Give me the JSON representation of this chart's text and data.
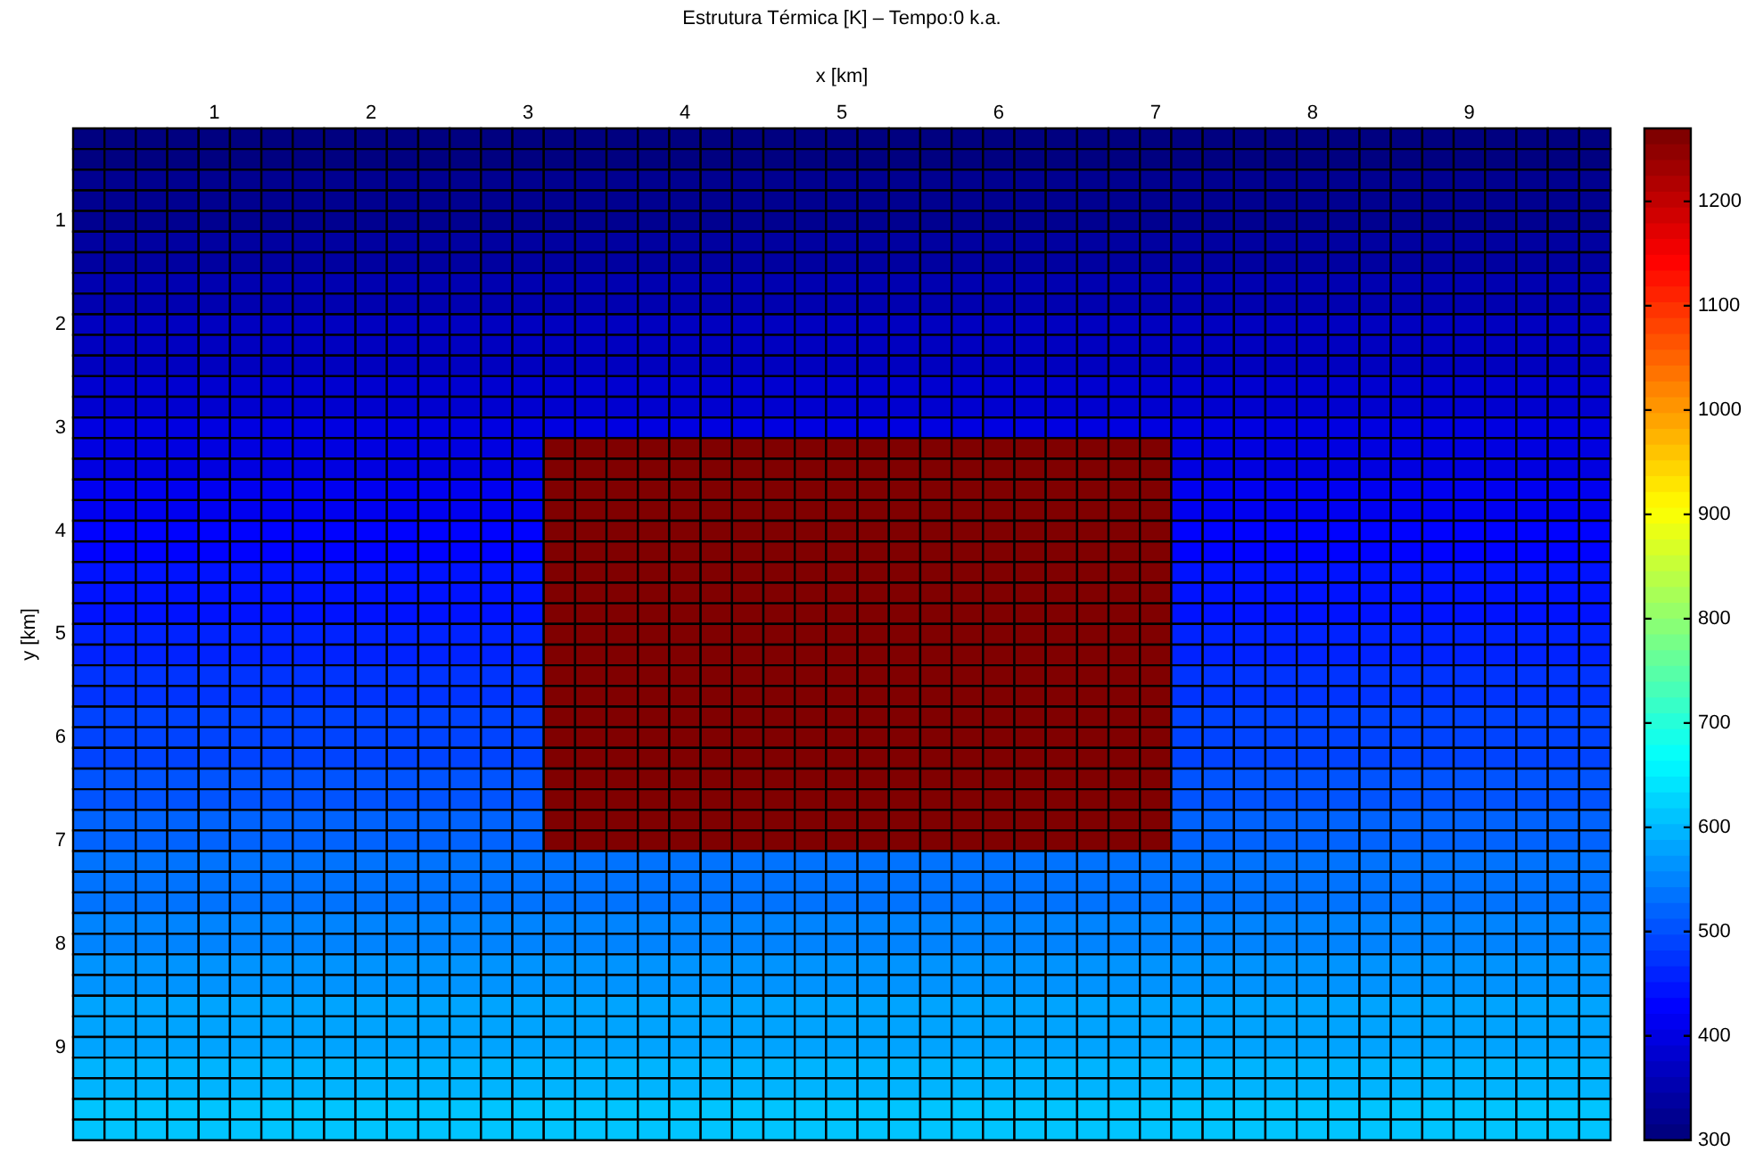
{
  "chart_data": {
    "type": "heatmap",
    "title": "Estrutura Térmica [K] – Tempo:0 k.a.",
    "xlabel": "x [km]",
    "ylabel": "y [km]",
    "categories": [
      null,
      null,
      null,
      null,
      "1",
      null,
      null,
      null,
      null,
      "2",
      null,
      null,
      null,
      null,
      "3",
      null,
      null,
      null,
      null,
      "4",
      null,
      null,
      null,
      null,
      "5",
      null,
      null,
      null,
      null,
      "6",
      null,
      null,
      null,
      null,
      "7",
      null,
      null,
      null,
      null,
      "8",
      null,
      null,
      null,
      null,
      "9",
      null,
      null,
      null,
      null
    ],
    "y_categories": [
      null,
      null,
      null,
      null,
      "1",
      null,
      null,
      null,
      null,
      "2",
      null,
      null,
      null,
      null,
      "3",
      null,
      null,
      null,
      null,
      "4",
      null,
      null,
      null,
      null,
      "5",
      null,
      null,
      null,
      null,
      "6",
      null,
      null,
      null,
      null,
      "7",
      null,
      null,
      null,
      null,
      "8",
      null,
      null,
      null,
      null,
      "9",
      null,
      null,
      null,
      null
    ],
    "clim": [
      300,
      1270
    ],
    "cticks": [
      300,
      400,
      500,
      600,
      700,
      800,
      900,
      1000,
      1100,
      1200
    ],
    "cells": [
      [
        305,
        305,
        305,
        305,
        305,
        305,
        305,
        305,
        305,
        305,
        305,
        305,
        305,
        305,
        305,
        305,
        305,
        305,
        305,
        305,
        305,
        305,
        305,
        305,
        305,
        305,
        305,
        305,
        305,
        305,
        305,
        305,
        305,
        305,
        305,
        305,
        305,
        305,
        305,
        305,
        305,
        305,
        305,
        305,
        305,
        305,
        305,
        305,
        305
      ],
      [
        310,
        310,
        310,
        310,
        310,
        310,
        310,
        310,
        310,
        310,
        310,
        310,
        310,
        310,
        310,
        310,
        310,
        310,
        310,
        310,
        310,
        310,
        310,
        310,
        310,
        310,
        310,
        310,
        310,
        310,
        310,
        310,
        310,
        310,
        310,
        310,
        310,
        310,
        310,
        310,
        310,
        310,
        310,
        310,
        310,
        310,
        310,
        310,
        310
      ],
      [
        320,
        320,
        320,
        320,
        320,
        320,
        320,
        320,
        320,
        320,
        320,
        320,
        320,
        320,
        320,
        320,
        320,
        320,
        320,
        320,
        320,
        320,
        320,
        320,
        320,
        320,
        320,
        320,
        320,
        320,
        320,
        320,
        320,
        320,
        320,
        320,
        320,
        320,
        320,
        320,
        320,
        320,
        320,
        320,
        320,
        320,
        320,
        320,
        320
      ],
      [
        325,
        325,
        325,
        325,
        325,
        325,
        325,
        325,
        325,
        325,
        325,
        325,
        325,
        325,
        325,
        325,
        325,
        325,
        325,
        325,
        325,
        325,
        325,
        325,
        325,
        325,
        325,
        325,
        325,
        325,
        325,
        325,
        325,
        325,
        325,
        325,
        325,
        325,
        325,
        325,
        325,
        325,
        325,
        325,
        325,
        325,
        325,
        325,
        325
      ],
      [
        330,
        330,
        330,
        330,
        330,
        330,
        330,
        330,
        330,
        330,
        330,
        330,
        330,
        330,
        330,
        330,
        330,
        330,
        330,
        330,
        330,
        330,
        330,
        330,
        330,
        330,
        330,
        330,
        330,
        330,
        330,
        330,
        330,
        330,
        330,
        330,
        330,
        330,
        330,
        330,
        330,
        330,
        330,
        330,
        330,
        330,
        330,
        330,
        330
      ],
      [
        335,
        335,
        335,
        335,
        335,
        335,
        335,
        335,
        335,
        335,
        335,
        335,
        335,
        335,
        335,
        335,
        335,
        335,
        335,
        335,
        335,
        335,
        335,
        335,
        335,
        335,
        335,
        335,
        335,
        335,
        335,
        335,
        335,
        335,
        335,
        335,
        335,
        335,
        335,
        335,
        335,
        335,
        335,
        335,
        335,
        335,
        335,
        335,
        335
      ],
      [
        345,
        345,
        345,
        345,
        345,
        345,
        345,
        345,
        345,
        345,
        345,
        345,
        345,
        345,
        345,
        345,
        345,
        345,
        345,
        345,
        345,
        345,
        345,
        345,
        345,
        345,
        345,
        345,
        345,
        345,
        345,
        345,
        345,
        345,
        345,
        345,
        345,
        345,
        345,
        345,
        345,
        345,
        345,
        345,
        345,
        345,
        345,
        345,
        345
      ],
      [
        350,
        350,
        350,
        350,
        350,
        350,
        350,
        350,
        350,
        350,
        350,
        350,
        350,
        350,
        350,
        350,
        350,
        350,
        350,
        350,
        350,
        350,
        350,
        350,
        350,
        350,
        350,
        350,
        350,
        350,
        350,
        350,
        350,
        350,
        350,
        350,
        350,
        350,
        350,
        350,
        350,
        350,
        350,
        350,
        350,
        350,
        350,
        350,
        350
      ],
      [
        355,
        355,
        355,
        355,
        355,
        355,
        355,
        355,
        355,
        355,
        355,
        355,
        355,
        355,
        355,
        355,
        355,
        355,
        355,
        355,
        355,
        355,
        355,
        355,
        355,
        355,
        355,
        355,
        355,
        355,
        355,
        355,
        355,
        355,
        355,
        355,
        355,
        355,
        355,
        355,
        355,
        355,
        355,
        355,
        355,
        355,
        355,
        355,
        355
      ],
      [
        365,
        365,
        365,
        365,
        365,
        365,
        365,
        365,
        365,
        365,
        365,
        365,
        365,
        365,
        365,
        365,
        365,
        365,
        365,
        365,
        365,
        365,
        365,
        365,
        365,
        365,
        365,
        365,
        365,
        365,
        365,
        365,
        365,
        365,
        365,
        365,
        365,
        365,
        365,
        365,
        365,
        365,
        365,
        365,
        365,
        365,
        365,
        365,
        365
      ],
      [
        370,
        370,
        370,
        370,
        370,
        370,
        370,
        370,
        370,
        370,
        370,
        370,
        370,
        370,
        370,
        370,
        370,
        370,
        370,
        370,
        370,
        370,
        370,
        370,
        370,
        370,
        370,
        370,
        370,
        370,
        370,
        370,
        370,
        370,
        370,
        370,
        370,
        370,
        370,
        370,
        370,
        370,
        370,
        370,
        370,
        370,
        370,
        370,
        370
      ],
      [
        375,
        375,
        375,
        375,
        375,
        375,
        375,
        375,
        375,
        375,
        375,
        375,
        375,
        375,
        375,
        375,
        375,
        375,
        375,
        375,
        375,
        375,
        375,
        375,
        375,
        375,
        375,
        375,
        375,
        375,
        375,
        375,
        375,
        375,
        375,
        375,
        375,
        375,
        375,
        375,
        375,
        375,
        375,
        375,
        375,
        375,
        375,
        375,
        375
      ],
      [
        380,
        380,
        380,
        380,
        380,
        380,
        380,
        380,
        380,
        380,
        380,
        380,
        380,
        380,
        380,
        380,
        380,
        380,
        380,
        380,
        380,
        380,
        380,
        380,
        380,
        380,
        380,
        380,
        380,
        380,
        380,
        380,
        380,
        380,
        380,
        380,
        380,
        380,
        380,
        380,
        380,
        380,
        380,
        380,
        380,
        380,
        380,
        380,
        380
      ],
      [
        390,
        390,
        390,
        390,
        390,
        390,
        390,
        390,
        390,
        390,
        390,
        390,
        390,
        390,
        390,
        390,
        390,
        390,
        390,
        390,
        390,
        390,
        390,
        390,
        390,
        390,
        390,
        390,
        390,
        390,
        390,
        390,
        390,
        390,
        390,
        390,
        390,
        390,
        390,
        390,
        390,
        390,
        390,
        390,
        390,
        390,
        390,
        390,
        390
      ],
      [
        395,
        395,
        395,
        395,
        395,
        395,
        395,
        395,
        395,
        395,
        395,
        395,
        395,
        395,
        395,
        395,
        395,
        395,
        395,
        395,
        395,
        395,
        395,
        395,
        395,
        395,
        395,
        395,
        395,
        395,
        395,
        395,
        395,
        395,
        395,
        395,
        395,
        395,
        395,
        395,
        395,
        395,
        395,
        395,
        395,
        395,
        395,
        395,
        395
      ],
      [
        400,
        400,
        400,
        400,
        400,
        400,
        400,
        400,
        400,
        400,
        400,
        400,
        400,
        400,
        400,
        1270,
        1270,
        1270,
        1270,
        1270,
        1270,
        1270,
        1270,
        1270,
        1270,
        1270,
        1270,
        1270,
        1270,
        1270,
        1270,
        1270,
        1270,
        1270,
        1270,
        400,
        400,
        400,
        400,
        400,
        400,
        400,
        400,
        400,
        400,
        400,
        400,
        400,
        400
      ],
      [
        405,
        405,
        405,
        405,
        405,
        405,
        405,
        405,
        405,
        405,
        405,
        405,
        405,
        405,
        405,
        1270,
        1270,
        1270,
        1270,
        1270,
        1270,
        1270,
        1270,
        1270,
        1270,
        1270,
        1270,
        1270,
        1270,
        1270,
        1270,
        1270,
        1270,
        1270,
        1270,
        405,
        405,
        405,
        405,
        405,
        405,
        405,
        405,
        405,
        405,
        405,
        405,
        405,
        405
      ],
      [
        415,
        415,
        415,
        415,
        415,
        415,
        415,
        415,
        415,
        415,
        415,
        415,
        415,
        415,
        415,
        1270,
        1270,
        1270,
        1270,
        1270,
        1270,
        1270,
        1270,
        1270,
        1270,
        1270,
        1270,
        1270,
        1270,
        1270,
        1270,
        1270,
        1270,
        1270,
        1270,
        415,
        415,
        415,
        415,
        415,
        415,
        415,
        415,
        415,
        415,
        415,
        415,
        415,
        415
      ],
      [
        420,
        420,
        420,
        420,
        420,
        420,
        420,
        420,
        420,
        420,
        420,
        420,
        420,
        420,
        420,
        1270,
        1270,
        1270,
        1270,
        1270,
        1270,
        1270,
        1270,
        1270,
        1270,
        1270,
        1270,
        1270,
        1270,
        1270,
        1270,
        1270,
        1270,
        1270,
        1270,
        420,
        420,
        420,
        420,
        420,
        420,
        420,
        420,
        420,
        420,
        420,
        420,
        420,
        420
      ],
      [
        425,
        425,
        425,
        425,
        425,
        425,
        425,
        425,
        425,
        425,
        425,
        425,
        425,
        425,
        425,
        1270,
        1270,
        1270,
        1270,
        1270,
        1270,
        1270,
        1270,
        1270,
        1270,
        1270,
        1270,
        1270,
        1270,
        1270,
        1270,
        1270,
        1270,
        1270,
        1270,
        425,
        425,
        425,
        425,
        425,
        425,
        425,
        425,
        425,
        425,
        425,
        425,
        425,
        425
      ],
      [
        435,
        435,
        435,
        435,
        435,
        435,
        435,
        435,
        435,
        435,
        435,
        435,
        435,
        435,
        435,
        1270,
        1270,
        1270,
        1270,
        1270,
        1270,
        1270,
        1270,
        1270,
        1270,
        1270,
        1270,
        1270,
        1270,
        1270,
        1270,
        1270,
        1270,
        1270,
        1270,
        435,
        435,
        435,
        435,
        435,
        435,
        435,
        435,
        435,
        435,
        435,
        435,
        435,
        435
      ],
      [
        440,
        440,
        440,
        440,
        440,
        440,
        440,
        440,
        440,
        440,
        440,
        440,
        440,
        440,
        440,
        1270,
        1270,
        1270,
        1270,
        1270,
        1270,
        1270,
        1270,
        1270,
        1270,
        1270,
        1270,
        1270,
        1270,
        1270,
        1270,
        1270,
        1270,
        1270,
        1270,
        440,
        440,
        440,
        440,
        440,
        440,
        440,
        440,
        440,
        440,
        440,
        440,
        440,
        440
      ],
      [
        445,
        445,
        445,
        445,
        445,
        445,
        445,
        445,
        445,
        445,
        445,
        445,
        445,
        445,
        445,
        1270,
        1270,
        1270,
        1270,
        1270,
        1270,
        1270,
        1270,
        1270,
        1270,
        1270,
        1270,
        1270,
        1270,
        1270,
        1270,
        1270,
        1270,
        1270,
        1270,
        445,
        445,
        445,
        445,
        445,
        445,
        445,
        445,
        445,
        445,
        445,
        445,
        445,
        445
      ],
      [
        450,
        450,
        450,
        450,
        450,
        450,
        450,
        450,
        450,
        450,
        450,
        450,
        450,
        450,
        450,
        1270,
        1270,
        1270,
        1270,
        1270,
        1270,
        1270,
        1270,
        1270,
        1270,
        1270,
        1270,
        1270,
        1270,
        1270,
        1270,
        1270,
        1270,
        1270,
        1270,
        450,
        450,
        450,
        450,
        450,
        450,
        450,
        450,
        450,
        450,
        450,
        450,
        450,
        450
      ],
      [
        460,
        460,
        460,
        460,
        460,
        460,
        460,
        460,
        460,
        460,
        460,
        460,
        460,
        460,
        460,
        1270,
        1270,
        1270,
        1270,
        1270,
        1270,
        1270,
        1270,
        1270,
        1270,
        1270,
        1270,
        1270,
        1270,
        1270,
        1270,
        1270,
        1270,
        1270,
        1270,
        460,
        460,
        460,
        460,
        460,
        460,
        460,
        460,
        460,
        460,
        460,
        460,
        460,
        460
      ],
      [
        465,
        465,
        465,
        465,
        465,
        465,
        465,
        465,
        465,
        465,
        465,
        465,
        465,
        465,
        465,
        1270,
        1270,
        1270,
        1270,
        1270,
        1270,
        1270,
        1270,
        1270,
        1270,
        1270,
        1270,
        1270,
        1270,
        1270,
        1270,
        1270,
        1270,
        1270,
        1270,
        465,
        465,
        465,
        465,
        465,
        465,
        465,
        465,
        465,
        465,
        465,
        465,
        465,
        465
      ],
      [
        470,
        470,
        470,
        470,
        470,
        470,
        470,
        470,
        470,
        470,
        470,
        470,
        470,
        470,
        470,
        1270,
        1270,
        1270,
        1270,
        1270,
        1270,
        1270,
        1270,
        1270,
        1270,
        1270,
        1270,
        1270,
        1270,
        1270,
        1270,
        1270,
        1270,
        1270,
        1270,
        470,
        470,
        470,
        470,
        470,
        470,
        470,
        470,
        470,
        470,
        470,
        470,
        470,
        470
      ],
      [
        480,
        480,
        480,
        480,
        480,
        480,
        480,
        480,
        480,
        480,
        480,
        480,
        480,
        480,
        480,
        1270,
        1270,
        1270,
        1270,
        1270,
        1270,
        1270,
        1270,
        1270,
        1270,
        1270,
        1270,
        1270,
        1270,
        1270,
        1270,
        1270,
        1270,
        1270,
        1270,
        480,
        480,
        480,
        480,
        480,
        480,
        480,
        480,
        480,
        480,
        480,
        480,
        480,
        480
      ],
      [
        485,
        485,
        485,
        485,
        485,
        485,
        485,
        485,
        485,
        485,
        485,
        485,
        485,
        485,
        485,
        1270,
        1270,
        1270,
        1270,
        1270,
        1270,
        1270,
        1270,
        1270,
        1270,
        1270,
        1270,
        1270,
        1270,
        1270,
        1270,
        1270,
        1270,
        1270,
        1270,
        485,
        485,
        485,
        485,
        485,
        485,
        485,
        485,
        485,
        485,
        485,
        485,
        485,
        485
      ],
      [
        490,
        490,
        490,
        490,
        490,
        490,
        490,
        490,
        490,
        490,
        490,
        490,
        490,
        490,
        490,
        1270,
        1270,
        1270,
        1270,
        1270,
        1270,
        1270,
        1270,
        1270,
        1270,
        1270,
        1270,
        1270,
        1270,
        1270,
        1270,
        1270,
        1270,
        1270,
        1270,
        490,
        490,
        490,
        490,
        490,
        490,
        490,
        490,
        490,
        490,
        490,
        490,
        490,
        490
      ],
      [
        495,
        495,
        495,
        495,
        495,
        495,
        495,
        495,
        495,
        495,
        495,
        495,
        495,
        495,
        495,
        1270,
        1270,
        1270,
        1270,
        1270,
        1270,
        1270,
        1270,
        1270,
        1270,
        1270,
        1270,
        1270,
        1270,
        1270,
        1270,
        1270,
        1270,
        1270,
        1270,
        495,
        495,
        495,
        495,
        495,
        495,
        495,
        495,
        495,
        495,
        495,
        495,
        495,
        495
      ],
      [
        505,
        505,
        505,
        505,
        505,
        505,
        505,
        505,
        505,
        505,
        505,
        505,
        505,
        505,
        505,
        1270,
        1270,
        1270,
        1270,
        1270,
        1270,
        1270,
        1270,
        1270,
        1270,
        1270,
        1270,
        1270,
        1270,
        1270,
        1270,
        1270,
        1270,
        1270,
        1270,
        505,
        505,
        505,
        505,
        505,
        505,
        505,
        505,
        505,
        505,
        505,
        505,
        505,
        505
      ],
      [
        510,
        510,
        510,
        510,
        510,
        510,
        510,
        510,
        510,
        510,
        510,
        510,
        510,
        510,
        510,
        1270,
        1270,
        1270,
        1270,
        1270,
        1270,
        1270,
        1270,
        1270,
        1270,
        1270,
        1270,
        1270,
        1270,
        1270,
        1270,
        1270,
        1270,
        1270,
        1270,
        510,
        510,
        510,
        510,
        510,
        510,
        510,
        510,
        510,
        510,
        510,
        510,
        510,
        510
      ],
      [
        515,
        515,
        515,
        515,
        515,
        515,
        515,
        515,
        515,
        515,
        515,
        515,
        515,
        515,
        515,
        1270,
        1270,
        1270,
        1270,
        1270,
        1270,
        1270,
        1270,
        1270,
        1270,
        1270,
        1270,
        1270,
        1270,
        1270,
        1270,
        1270,
        1270,
        1270,
        1270,
        515,
        515,
        515,
        515,
        515,
        515,
        515,
        515,
        515,
        515,
        515,
        515,
        515,
        515
      ],
      [
        525,
        525,
        525,
        525,
        525,
        525,
        525,
        525,
        525,
        525,
        525,
        525,
        525,
        525,
        525,
        1270,
        1270,
        1270,
        1270,
        1270,
        1270,
        1270,
        1270,
        1270,
        1270,
        1270,
        1270,
        1270,
        1270,
        1270,
        1270,
        1270,
        1270,
        1270,
        1270,
        525,
        525,
        525,
        525,
        525,
        525,
        525,
        525,
        525,
        525,
        525,
        525,
        525,
        525
      ],
      [
        530,
        530,
        530,
        530,
        530,
        530,
        530,
        530,
        530,
        530,
        530,
        530,
        530,
        530,
        530,
        530,
        530,
        530,
        530,
        530,
        530,
        530,
        530,
        530,
        530,
        530,
        530,
        530,
        530,
        530,
        530,
        530,
        530,
        530,
        530,
        530,
        530,
        530,
        530,
        530,
        530,
        530,
        530,
        530,
        530,
        530,
        530,
        530,
        530
      ],
      [
        535,
        535,
        535,
        535,
        535,
        535,
        535,
        535,
        535,
        535,
        535,
        535,
        535,
        535,
        535,
        535,
        535,
        535,
        535,
        535,
        535,
        535,
        535,
        535,
        535,
        535,
        535,
        535,
        535,
        535,
        535,
        535,
        535,
        535,
        535,
        535,
        535,
        535,
        535,
        535,
        535,
        535,
        535,
        535,
        535,
        535,
        535,
        535,
        535
      ],
      [
        540,
        540,
        540,
        540,
        540,
        540,
        540,
        540,
        540,
        540,
        540,
        540,
        540,
        540,
        540,
        540,
        540,
        540,
        540,
        540,
        540,
        540,
        540,
        540,
        540,
        540,
        540,
        540,
        540,
        540,
        540,
        540,
        540,
        540,
        540,
        540,
        540,
        540,
        540,
        540,
        540,
        540,
        540,
        540,
        540,
        540,
        540,
        540,
        540
      ],
      [
        550,
        550,
        550,
        550,
        550,
        550,
        550,
        550,
        550,
        550,
        550,
        550,
        550,
        550,
        550,
        550,
        550,
        550,
        550,
        550,
        550,
        550,
        550,
        550,
        550,
        550,
        550,
        550,
        550,
        550,
        550,
        550,
        550,
        550,
        550,
        550,
        550,
        550,
        550,
        550,
        550,
        550,
        550,
        550,
        550,
        550,
        550,
        550,
        550
      ],
      [
        555,
        555,
        555,
        555,
        555,
        555,
        555,
        555,
        555,
        555,
        555,
        555,
        555,
        555,
        555,
        555,
        555,
        555,
        555,
        555,
        555,
        555,
        555,
        555,
        555,
        555,
        555,
        555,
        555,
        555,
        555,
        555,
        555,
        555,
        555,
        555,
        555,
        555,
        555,
        555,
        555,
        555,
        555,
        555,
        555,
        555,
        555,
        555,
        555
      ],
      [
        560,
        560,
        560,
        560,
        560,
        560,
        560,
        560,
        560,
        560,
        560,
        560,
        560,
        560,
        560,
        560,
        560,
        560,
        560,
        560,
        560,
        560,
        560,
        560,
        560,
        560,
        560,
        560,
        560,
        560,
        560,
        560,
        560,
        560,
        560,
        560,
        560,
        560,
        560,
        560,
        560,
        560,
        560,
        560,
        560,
        560,
        560,
        560,
        560
      ],
      [
        565,
        565,
        565,
        565,
        565,
        565,
        565,
        565,
        565,
        565,
        565,
        565,
        565,
        565,
        565,
        565,
        565,
        565,
        565,
        565,
        565,
        565,
        565,
        565,
        565,
        565,
        565,
        565,
        565,
        565,
        565,
        565,
        565,
        565,
        565,
        565,
        565,
        565,
        565,
        565,
        565,
        565,
        565,
        565,
        565,
        565,
        565,
        565,
        565
      ],
      [
        575,
        575,
        575,
        575,
        575,
        575,
        575,
        575,
        575,
        575,
        575,
        575,
        575,
        575,
        575,
        575,
        575,
        575,
        575,
        575,
        575,
        575,
        575,
        575,
        575,
        575,
        575,
        575,
        575,
        575,
        575,
        575,
        575,
        575,
        575,
        575,
        575,
        575,
        575,
        575,
        575,
        575,
        575,
        575,
        575,
        575,
        575,
        575,
        575
      ],
      [
        580,
        580,
        580,
        580,
        580,
        580,
        580,
        580,
        580,
        580,
        580,
        580,
        580,
        580,
        580,
        580,
        580,
        580,
        580,
        580,
        580,
        580,
        580,
        580,
        580,
        580,
        580,
        580,
        580,
        580,
        580,
        580,
        580,
        580,
        580,
        580,
        580,
        580,
        580,
        580,
        580,
        580,
        580,
        580,
        580,
        580,
        580,
        580,
        580
      ],
      [
        585,
        585,
        585,
        585,
        585,
        585,
        585,
        585,
        585,
        585,
        585,
        585,
        585,
        585,
        585,
        585,
        585,
        585,
        585,
        585,
        585,
        585,
        585,
        585,
        585,
        585,
        585,
        585,
        585,
        585,
        585,
        585,
        585,
        585,
        585,
        585,
        585,
        585,
        585,
        585,
        585,
        585,
        585,
        585,
        585,
        585,
        585,
        585,
        585
      ],
      [
        595,
        595,
        595,
        595,
        595,
        595,
        595,
        595,
        595,
        595,
        595,
        595,
        595,
        595,
        595,
        595,
        595,
        595,
        595,
        595,
        595,
        595,
        595,
        595,
        595,
        595,
        595,
        595,
        595,
        595,
        595,
        595,
        595,
        595,
        595,
        595,
        595,
        595,
        595,
        595,
        595,
        595,
        595,
        595,
        595,
        595,
        595,
        595,
        595
      ],
      [
        600,
        600,
        600,
        600,
        600,
        600,
        600,
        600,
        600,
        600,
        600,
        600,
        600,
        600,
        600,
        600,
        600,
        600,
        600,
        600,
        600,
        600,
        600,
        600,
        600,
        600,
        600,
        600,
        600,
        600,
        600,
        600,
        600,
        600,
        600,
        600,
        600,
        600,
        600,
        600,
        600,
        600,
        600,
        600,
        600,
        600,
        600,
        600,
        600
      ],
      [
        605,
        605,
        605,
        605,
        605,
        605,
        605,
        605,
        605,
        605,
        605,
        605,
        605,
        605,
        605,
        605,
        605,
        605,
        605,
        605,
        605,
        605,
        605,
        605,
        605,
        605,
        605,
        605,
        605,
        605,
        605,
        605,
        605,
        605,
        605,
        605,
        605,
        605,
        605,
        605,
        605,
        605,
        605,
        605,
        605,
        605,
        605,
        605,
        605
      ],
      [
        610,
        610,
        610,
        610,
        610,
        610,
        610,
        610,
        610,
        610,
        610,
        610,
        610,
        610,
        610,
        610,
        610,
        610,
        610,
        610,
        610,
        610,
        610,
        610,
        610,
        610,
        610,
        610,
        610,
        610,
        610,
        610,
        610,
        610,
        610,
        610,
        610,
        610,
        610,
        610,
        610,
        610,
        610,
        610,
        610,
        610,
        610,
        610,
        610
      ]
    ]
  }
}
